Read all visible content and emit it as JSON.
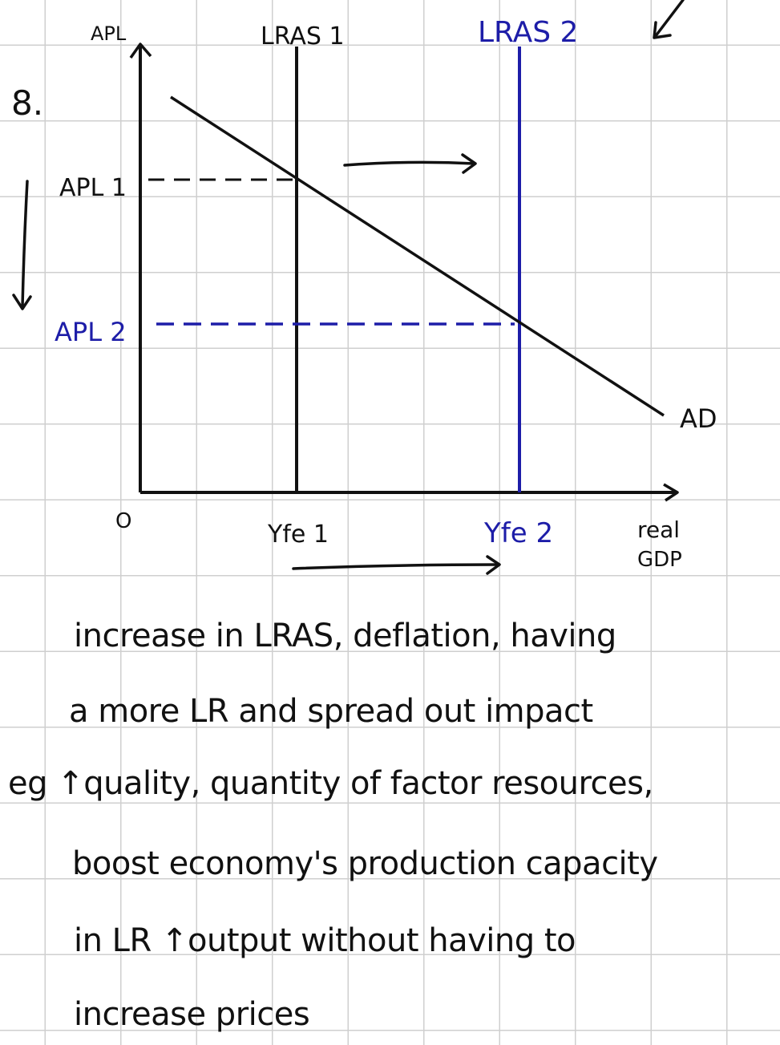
{
  "question_number": "8.",
  "diagram": {
    "y_axis_label": "APL",
    "x_axis_label_line1": "real",
    "x_axis_label_line2": "GDP",
    "origin_label": "O",
    "curves": {
      "lras1": "LRAS 1",
      "lras2": "LRAS 2",
      "ad": "AD"
    },
    "price_levels": {
      "apl1": "APL 1",
      "apl2": "APL 2"
    },
    "outputs": {
      "yfe1": "Yfe 1",
      "yfe2": "Yfe 2"
    },
    "colors": {
      "ink": "#111111",
      "shift": "#1d1da8",
      "grid": "#cfcfcf"
    }
  },
  "notes": [
    "increase in LRAS, deflation, having",
    "a more LR and spread out impact",
    "eg ↑quality, quantity of factor resources,",
    "boost economy's production capacity",
    "in LR ↑output without having to",
    "increase prices"
  ]
}
